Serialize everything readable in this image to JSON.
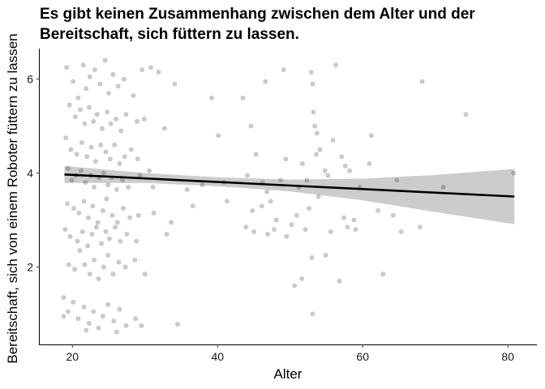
{
  "chart_data": {
    "type": "scatter",
    "title_lines": [
      "Es gibt keinen Zusammenhang zwischen dem Alter und der",
      "Bereitschaft, sich füttern zu lassen."
    ],
    "xlabel": "Alter",
    "ylabel": "Bereitschaft, sich von einem Roboter füttern zu lassen",
    "xlim": [
      15.5,
      84
    ],
    "ylim": [
      0.35,
      6.65
    ],
    "x_ticks": [
      20,
      40,
      60,
      80
    ],
    "y_ticks": [
      2,
      4,
      6
    ],
    "grid": false,
    "legend": "none",
    "point_color": "#000000",
    "point_opacity": 0.2,
    "fit_color": "#000000",
    "band_color": "#cccccc",
    "fit_line": {
      "x": [
        18.9,
        80.9
      ],
      "y": [
        3.97,
        3.5
      ]
    },
    "confidence_band": {
      "x": [
        18.9,
        30,
        40,
        50,
        60,
        70,
        80.9
      ],
      "lower": [
        3.79,
        3.79,
        3.72,
        3.61,
        3.42,
        3.17,
        2.91
      ],
      "upper": [
        4.15,
        4.0,
        3.91,
        3.86,
        3.88,
        3.96,
        4.09
      ]
    },
    "points": [
      [
        19.2,
        6.25
      ],
      [
        20.1,
        5.95
      ],
      [
        20.8,
        5.6
      ],
      [
        21.5,
        6.3
      ],
      [
        21.9,
        5.8
      ],
      [
        22.4,
        6.05
      ],
      [
        23.1,
        6.2
      ],
      [
        23.8,
        5.9
      ],
      [
        24.5,
        6.4
      ],
      [
        25.0,
        5.7
      ],
      [
        25.6,
        6.1
      ],
      [
        26.3,
        5.85
      ],
      [
        27.1,
        6.0
      ],
      [
        28.4,
        5.65
      ],
      [
        29.6,
        6.2
      ],
      [
        30.8,
        6.25
      ],
      [
        31.9,
        6.15
      ],
      [
        34.1,
        5.9
      ],
      [
        39.2,
        5.6
      ],
      [
        43.5,
        5.6
      ],
      [
        46.6,
        5.95
      ],
      [
        49.1,
        6.2
      ],
      [
        52.9,
        6.15
      ],
      [
        53.1,
        5.9
      ],
      [
        56.3,
        6.3
      ],
      [
        68.2,
        5.95
      ],
      [
        19.6,
        5.45
      ],
      [
        20.4,
        5.2
      ],
      [
        21.1,
        5.35
      ],
      [
        21.7,
        5.05
      ],
      [
        22.3,
        5.4
      ],
      [
        22.9,
        5.1
      ],
      [
        23.4,
        5.25
      ],
      [
        24.1,
        4.95
      ],
      [
        24.8,
        5.3
      ],
      [
        25.3,
        5.05
      ],
      [
        26.0,
        5.15
      ],
      [
        26.7,
        4.9
      ],
      [
        27.4,
        5.25
      ],
      [
        28.9,
        5.1
      ],
      [
        29.9,
        5.15
      ],
      [
        32.7,
        4.95
      ],
      [
        40.1,
        4.8
      ],
      [
        44.6,
        5.0
      ],
      [
        53.2,
        5.3
      ],
      [
        53.4,
        5.0
      ],
      [
        53.7,
        4.85
      ],
      [
        55.9,
        4.7
      ],
      [
        61.2,
        4.8
      ],
      [
        74.2,
        5.25
      ],
      [
        19.1,
        4.75
      ],
      [
        19.8,
        4.5
      ],
      [
        20.6,
        4.4
      ],
      [
        21.3,
        4.65
      ],
      [
        22.0,
        4.35
      ],
      [
        22.6,
        4.55
      ],
      [
        23.2,
        4.25
      ],
      [
        23.9,
        4.6
      ],
      [
        24.6,
        4.45
      ],
      [
        25.2,
        4.3
      ],
      [
        25.8,
        4.6
      ],
      [
        26.5,
        4.2
      ],
      [
        27.2,
        4.35
      ],
      [
        28.1,
        4.5
      ],
      [
        29.0,
        4.3
      ],
      [
        30.6,
        4.05
      ],
      [
        45.3,
        4.4
      ],
      [
        49.4,
        4.3
      ],
      [
        51.7,
        4.2
      ],
      [
        53.6,
        4.4
      ],
      [
        54.1,
        4.5
      ],
      [
        54.8,
        4.05
      ],
      [
        57.1,
        4.35
      ],
      [
        57.6,
        4.15
      ],
      [
        58.2,
        4.05
      ],
      [
        60.9,
        4.2
      ],
      [
        19.4,
        4.1
      ],
      [
        19.9,
        3.85
      ],
      [
        20.5,
        3.95
      ],
      [
        21.2,
        4.05
      ],
      [
        21.8,
        3.8
      ],
      [
        22.5,
        3.95
      ],
      [
        23.0,
        3.7
      ],
      [
        23.7,
        3.9
      ],
      [
        24.3,
        4.0
      ],
      [
        24.9,
        3.75
      ],
      [
        25.4,
        3.9
      ],
      [
        26.1,
        3.65
      ],
      [
        26.9,
        3.85
      ],
      [
        27.7,
        3.7
      ],
      [
        29.3,
        3.95
      ],
      [
        31.1,
        3.7
      ],
      [
        35.8,
        3.65
      ],
      [
        37.9,
        3.75
      ],
      [
        40.9,
        3.8
      ],
      [
        44.1,
        3.95
      ],
      [
        46.2,
        3.8
      ],
      [
        46.8,
        3.6
      ],
      [
        48.7,
        3.85
      ],
      [
        51.2,
        3.7
      ],
      [
        52.3,
        3.85
      ],
      [
        55.2,
        3.95
      ],
      [
        59.6,
        3.7
      ],
      [
        64.7,
        3.85
      ],
      [
        71.1,
        3.7
      ],
      [
        80.8,
        4.0
      ],
      [
        19.3,
        3.35
      ],
      [
        20.2,
        3.25
      ],
      [
        20.9,
        3.15
      ],
      [
        21.6,
        3.4
      ],
      [
        22.2,
        3.05
      ],
      [
        22.8,
        3.3
      ],
      [
        23.5,
        2.95
      ],
      [
        24.2,
        3.2
      ],
      [
        24.7,
        3.45
      ],
      [
        25.5,
        3.1
      ],
      [
        26.2,
        2.95
      ],
      [
        27.0,
        3.25
      ],
      [
        27.9,
        3.05
      ],
      [
        29.1,
        3.1
      ],
      [
        31.2,
        3.15
      ],
      [
        33.6,
        2.95
      ],
      [
        36.6,
        3.3
      ],
      [
        41.3,
        3.4
      ],
      [
        44.8,
        3.2
      ],
      [
        46.1,
        3.3
      ],
      [
        47.3,
        3.4
      ],
      [
        48.1,
        3.0
      ],
      [
        50.9,
        3.1
      ],
      [
        52.6,
        3.25
      ],
      [
        53.9,
        3.5
      ],
      [
        57.4,
        3.05
      ],
      [
        58.8,
        3.0
      ],
      [
        62.1,
        3.2
      ],
      [
        64.2,
        3.1
      ],
      [
        19.0,
        2.8
      ],
      [
        19.7,
        2.65
      ],
      [
        20.7,
        2.55
      ],
      [
        21.4,
        2.75
      ],
      [
        22.1,
        2.45
      ],
      [
        22.7,
        2.7
      ],
      [
        23.3,
        2.85
      ],
      [
        24.0,
        2.5
      ],
      [
        24.6,
        2.75
      ],
      [
        25.1,
        2.6
      ],
      [
        25.9,
        2.85
      ],
      [
        26.6,
        2.55
      ],
      [
        27.5,
        2.7
      ],
      [
        28.8,
        2.55
      ],
      [
        33.0,
        2.7
      ],
      [
        43.9,
        2.85
      ],
      [
        45.0,
        2.75
      ],
      [
        46.9,
        2.7
      ],
      [
        47.8,
        2.8
      ],
      [
        49.5,
        2.65
      ],
      [
        50.2,
        2.9
      ],
      [
        52.1,
        2.8
      ],
      [
        55.6,
        2.75
      ],
      [
        57.9,
        2.85
      ],
      [
        59.0,
        2.8
      ],
      [
        65.3,
        2.75
      ],
      [
        67.9,
        2.85
      ],
      [
        19.5,
        2.05
      ],
      [
        20.3,
        1.95
      ],
      [
        21.0,
        2.35
      ],
      [
        21.7,
        2.05
      ],
      [
        22.4,
        1.85
      ],
      [
        23.0,
        2.15
      ],
      [
        23.6,
        1.75
      ],
      [
        24.3,
        2.0
      ],
      [
        24.9,
        2.25
      ],
      [
        25.6,
        1.85
      ],
      [
        26.4,
        2.1
      ],
      [
        27.3,
        2.0
      ],
      [
        28.6,
        2.15
      ],
      [
        30.0,
        1.85
      ],
      [
        50.6,
        1.6
      ],
      [
        51.6,
        1.75
      ],
      [
        53.0,
        2.2
      ],
      [
        54.9,
        2.25
      ],
      [
        56.8,
        1.7
      ],
      [
        62.8,
        1.85
      ],
      [
        18.8,
        1.35
      ],
      [
        19.4,
        1.05
      ],
      [
        20.1,
        1.25
      ],
      [
        20.8,
        0.9
      ],
      [
        21.6,
        1.15
      ],
      [
        22.3,
        0.8
      ],
      [
        22.9,
        1.05
      ],
      [
        23.6,
        0.7
      ],
      [
        24.2,
        0.95
      ],
      [
        24.9,
        1.2
      ],
      [
        25.7,
        0.85
      ],
      [
        26.5,
        1.1
      ],
      [
        27.4,
        0.75
      ],
      [
        28.7,
        0.9
      ],
      [
        29.5,
        0.75
      ],
      [
        34.5,
        0.78
      ],
      [
        53.1,
        1.0
      ],
      [
        18.8,
        0.95
      ],
      [
        21.9,
        0.65
      ],
      [
        26.1,
        0.62
      ]
    ]
  }
}
